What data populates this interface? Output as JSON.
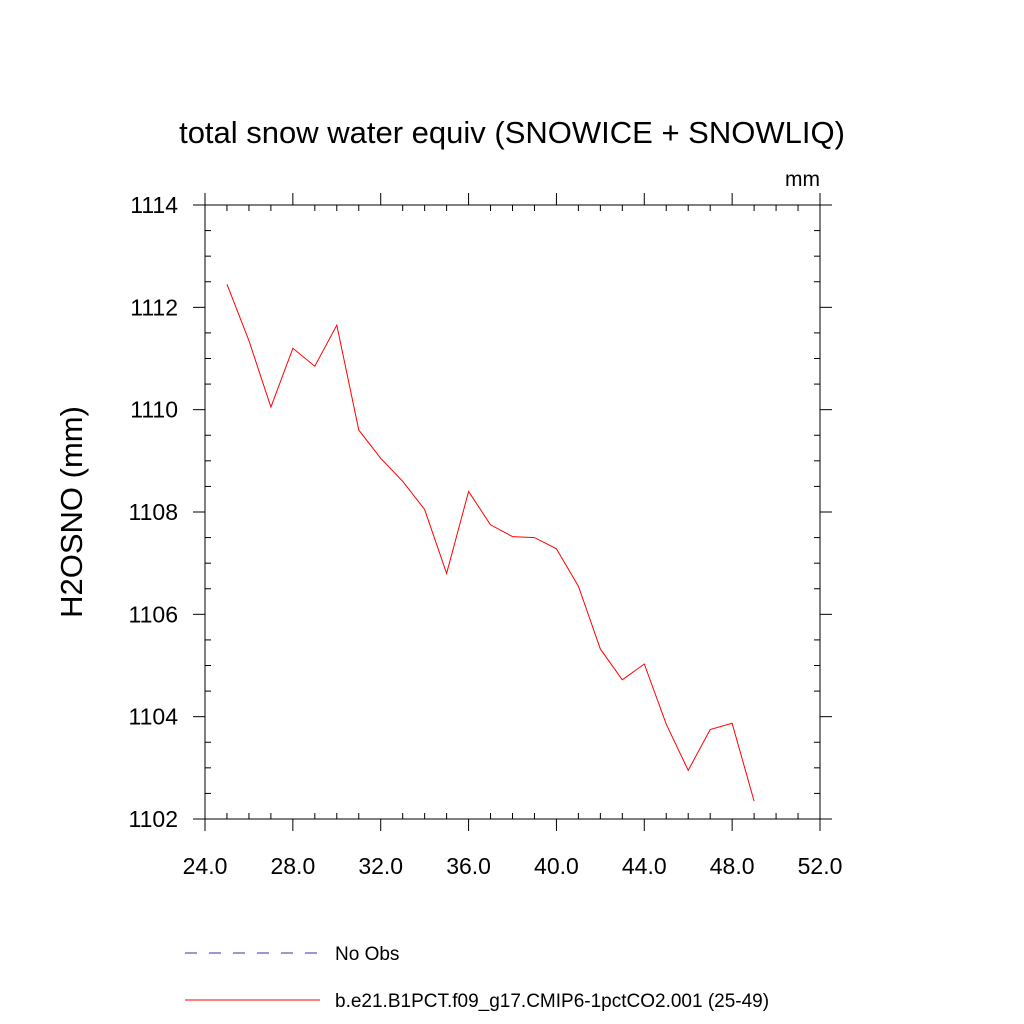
{
  "chart_data": {
    "type": "line",
    "title": "total snow water equiv (SNOWICE + SNOWLIQ)",
    "units_label": "mm",
    "xlabel": "",
    "ylabel": "H2OSNO  (mm)",
    "xlim": [
      24.0,
      52.0
    ],
    "ylim": [
      1102,
      1114
    ],
    "xticks": [
      24.0,
      28.0,
      32.0,
      36.0,
      40.0,
      44.0,
      48.0,
      52.0
    ],
    "xtick_labels": [
      "24.0",
      "28.0",
      "32.0",
      "36.0",
      "40.0",
      "44.0",
      "48.0",
      "52.0"
    ],
    "x_minor_step": 1,
    "yticks": [
      1102,
      1104,
      1106,
      1108,
      1110,
      1112,
      1114
    ],
    "ytick_labels": [
      "1102",
      "1104",
      "1106",
      "1108",
      "1110",
      "1112",
      "1114"
    ],
    "y_minor_step": 0.5,
    "grid": false,
    "legend_position": "bottom-left",
    "series": [
      {
        "name": "No Obs",
        "color": "#3333aa",
        "style": "dashed",
        "x": [],
        "values": []
      },
      {
        "name": "b.e21.B1PCT.f09_g17.CMIP6-1pctCO2.001 (25-49)",
        "color": "#ff0000",
        "style": "solid",
        "x": [
          25,
          26,
          27,
          28,
          29,
          30,
          31,
          32,
          33,
          34,
          35,
          36,
          37,
          38,
          39,
          40,
          41,
          42,
          43,
          44,
          45,
          46,
          47,
          48,
          49
        ],
        "values": [
          1112.45,
          1111.35,
          1110.05,
          1111.2,
          1110.85,
          1111.65,
          1109.6,
          1109.05,
          1108.6,
          1108.05,
          1106.8,
          1108.4,
          1107.75,
          1107.52,
          1107.5,
          1107.28,
          1106.55,
          1105.32,
          1104.72,
          1105.03,
          1103.85,
          1102.95,
          1103.75,
          1103.87,
          1102.35
        ]
      }
    ]
  }
}
